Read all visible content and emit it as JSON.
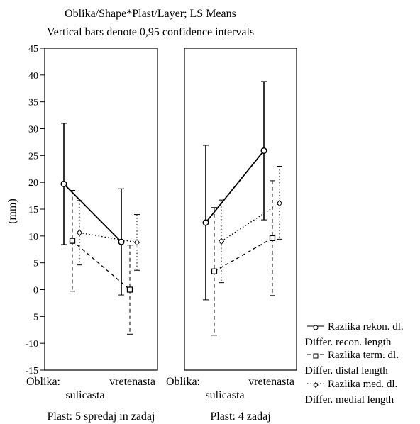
{
  "chart_data": {
    "type": "line",
    "title": "Oblika/Shape*Plast/Layer; LS Means",
    "subtitle": "Vertical bars denote 0,95 confidence intervals",
    "ylabel": "(mm)",
    "ylim": [
      -15,
      45
    ],
    "y_ticks": [
      45,
      40,
      35,
      30,
      25,
      20,
      15,
      10,
      5,
      0,
      -5,
      -10,
      -15
    ],
    "grid": false,
    "legend_position": "bottom-right",
    "category_axis_label": "Oblika:",
    "categories": [
      "sulicasta",
      "vretenasta"
    ],
    "panels": [
      {
        "label": "Plast: 5 spredaj in zadaj",
        "series": [
          {
            "name": "Razlika rekon. dl.",
            "name2": "Differ. recon. length",
            "marker": "circle",
            "line": "solid",
            "values": [
              19.7,
              8.9
            ],
            "ci_low": [
              8.4,
              -1.0
            ],
            "ci_high": [
              31.0,
              18.8
            ]
          },
          {
            "name": "Razlika term. dl.",
            "name2": "Differ. distal length",
            "marker": "square",
            "line": "dashed",
            "values": [
              9.1,
              0.0
            ],
            "ci_low": [
              -0.3,
              -8.3
            ],
            "ci_high": [
              18.5,
              8.3
            ]
          },
          {
            "name": "Razlika med. dl.",
            "name2": "Differ. medial length",
            "marker": "diamond",
            "line": "dotted",
            "values": [
              10.6,
              8.8
            ],
            "ci_low": [
              4.6,
              3.6
            ],
            "ci_high": [
              16.6,
              14.0
            ]
          }
        ]
      },
      {
        "label": "Plast: 4 zadaj",
        "series": [
          {
            "name": "Razlika rekon. dl.",
            "name2": "Differ. recon. length",
            "marker": "circle",
            "line": "solid",
            "values": [
              12.5,
              25.9
            ],
            "ci_low": [
              -1.9,
              13.0
            ],
            "ci_high": [
              26.9,
              38.8
            ]
          },
          {
            "name": "Razlika term. dl.",
            "name2": "Differ. distal length",
            "marker": "square",
            "line": "dashed",
            "values": [
              3.4,
              9.6
            ],
            "ci_low": [
              -8.5,
              -1.1
            ],
            "ci_high": [
              15.3,
              20.3
            ]
          },
          {
            "name": "Razlika med. dl.",
            "name2": "Differ. medial length",
            "marker": "diamond",
            "line": "dotted",
            "values": [
              9.0,
              16.1
            ],
            "ci_low": [
              1.3,
              9.4
            ],
            "ci_high": [
              16.7,
              23.0
            ]
          }
        ]
      }
    ]
  }
}
